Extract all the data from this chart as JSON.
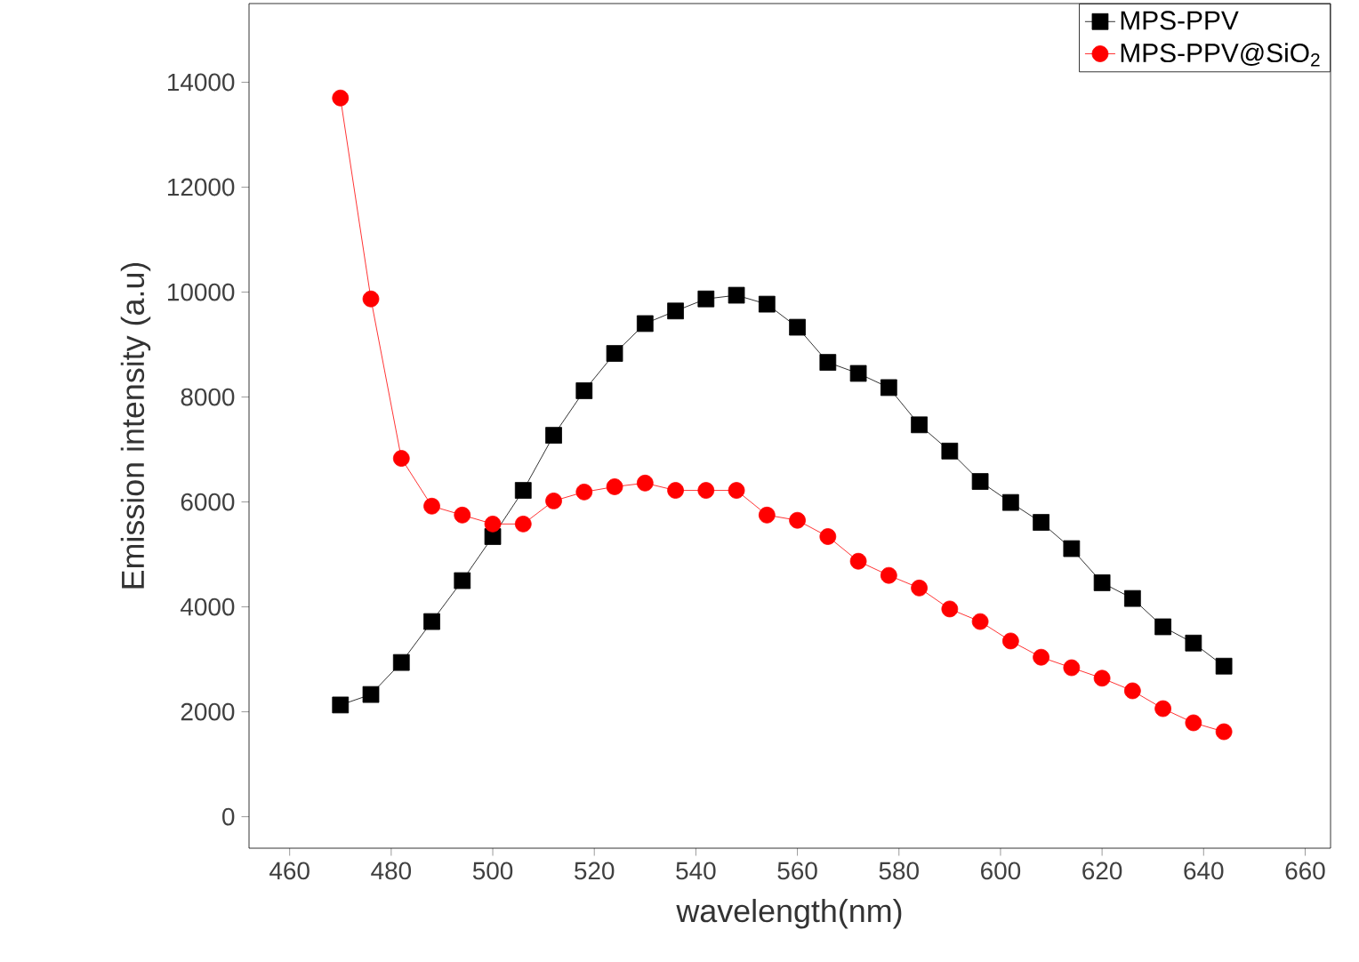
{
  "chart_data": {
    "type": "line",
    "xlabel": "wavelength(nm)",
    "ylabel": "Emission intensity (a.u)",
    "x": [
      470,
      476,
      482,
      488,
      494,
      500,
      506,
      512,
      518,
      524,
      530,
      536,
      542,
      548,
      554,
      560,
      566,
      572,
      578,
      584,
      590,
      596,
      602,
      608,
      614,
      620,
      626,
      632,
      638,
      644
    ],
    "series": [
      {
        "name": "MPS-PPV",
        "color": "#000000",
        "marker": "square",
        "values": [
          2130,
          2330,
          2940,
          3720,
          4500,
          5340,
          6220,
          7270,
          8120,
          8830,
          9400,
          9640,
          9870,
          9940,
          9770,
          9330,
          8660,
          8450,
          8180,
          7470,
          6970,
          6390,
          5990,
          5610,
          5110,
          4460,
          4160,
          3620,
          3310,
          2870
        ]
      },
      {
        "name": "MPS-PPV@SiO$_{2}$",
        "color": "#ff0000",
        "marker": "circle",
        "values": [
          13700,
          9870,
          6830,
          5920,
          5750,
          5580,
          5580,
          6020,
          6190,
          6290,
          6360,
          6220,
          6220,
          6220,
          5750,
          5650,
          5340,
          4870,
          4600,
          4360,
          3960,
          3720,
          3350,
          3040,
          2840,
          2640,
          2400,
          2060,
          1790,
          1620
        ]
      }
    ],
    "xlim": [
      452,
      665
    ],
    "ylim": [
      -600,
      15500
    ],
    "xticks": [
      460,
      480,
      500,
      520,
      540,
      560,
      580,
      600,
      620,
      640,
      660
    ],
    "yticks": [
      0,
      2000,
      4000,
      6000,
      8000,
      10000,
      12000,
      14000
    ],
    "grid": false,
    "legend": "top right",
    "line_style": "solid"
  }
}
